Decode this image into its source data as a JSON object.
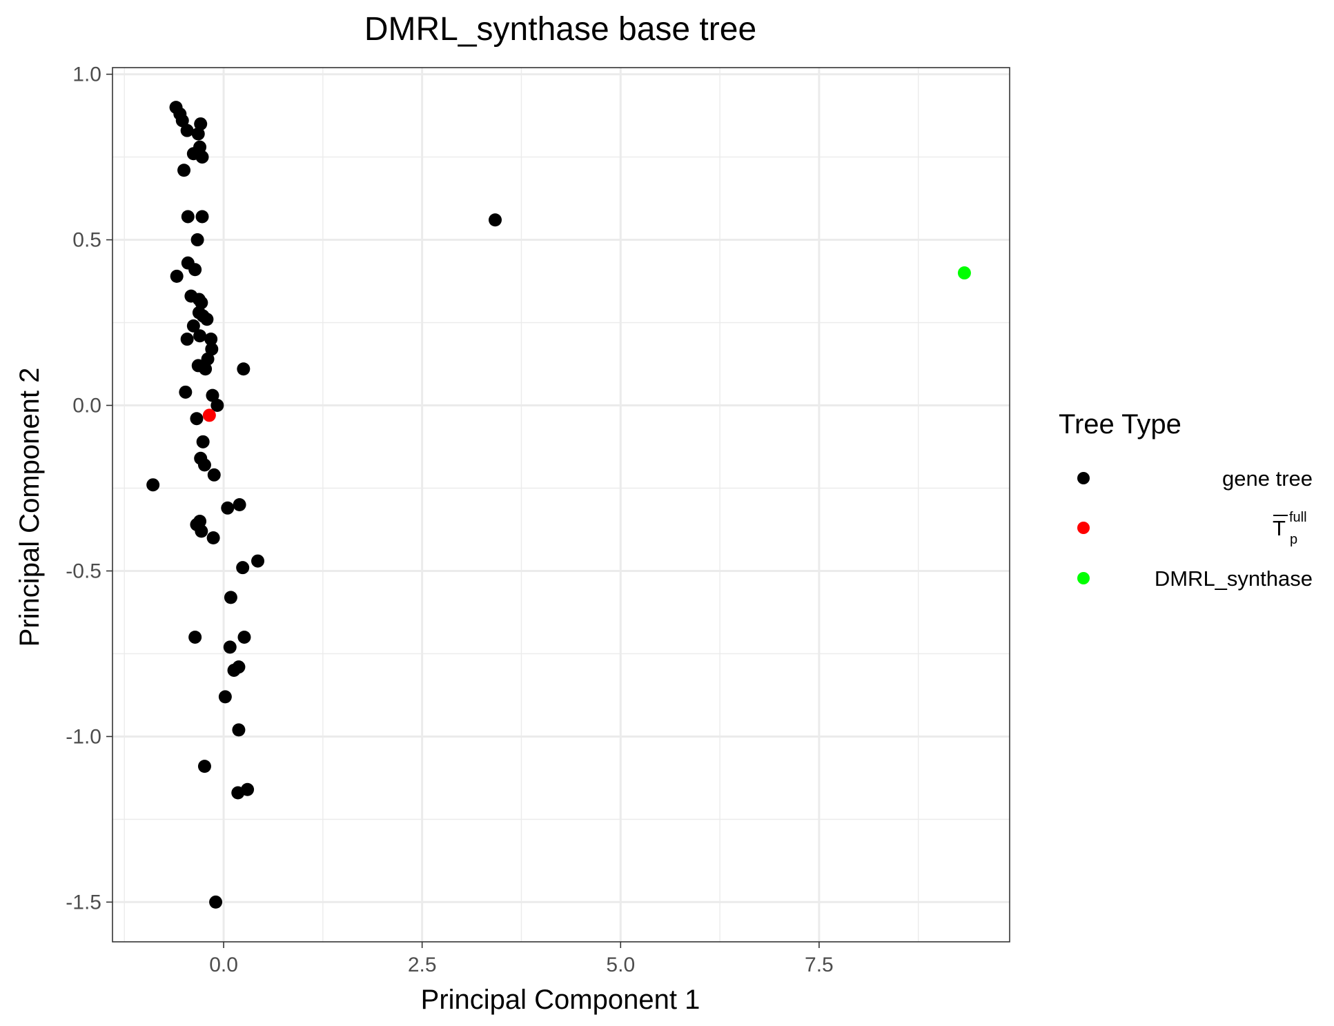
{
  "chart_data": {
    "type": "scatter",
    "title": "DMRL_synthase base tree",
    "xlabel": "Principal Component 1",
    "ylabel": "Principal Component 2",
    "xlim": [
      -1.4,
      9.9
    ],
    "ylim": [
      -1.62,
      1.02
    ],
    "x_major_ticks": [
      0.0,
      2.5,
      5.0,
      7.5
    ],
    "x_tick_labels": [
      "0.0",
      "2.5",
      "5.0",
      "7.5"
    ],
    "x_minor_ticks": [
      -1.25,
      1.25,
      3.75,
      6.25,
      8.75
    ],
    "y_major_ticks": [
      1.0,
      0.5,
      0.0,
      -0.5,
      -1.0,
      -1.5
    ],
    "y_tick_labels": [
      "1.0",
      "0.5",
      "0.0",
      "-0.5",
      "-1.0",
      "-1.5"
    ],
    "y_minor_ticks": [
      0.75,
      0.25,
      -0.25,
      -0.75,
      -1.25
    ],
    "grid": true,
    "legend": {
      "title": "Tree Type",
      "placement": "right",
      "entries": [
        {
          "label": "gene tree",
          "color": "#000000"
        },
        {
          "label": "T",
          "sub": "p",
          "sup": "full",
          "overline": true,
          "color": "#ff0000"
        },
        {
          "label": "DMRL_synthase",
          "color": "#00ff00"
        }
      ]
    },
    "series": [
      {
        "name": "gene tree",
        "color": "#000000",
        "points": [
          [
            -0.6,
            0.9
          ],
          [
            -0.55,
            0.88
          ],
          [
            -0.52,
            0.86
          ],
          [
            -0.46,
            0.83
          ],
          [
            -0.29,
            0.85
          ],
          [
            -0.32,
            0.82
          ],
          [
            -0.3,
            0.78
          ],
          [
            -0.38,
            0.76
          ],
          [
            -0.27,
            0.75
          ],
          [
            -0.5,
            0.71
          ],
          [
            -0.45,
            0.57
          ],
          [
            -0.27,
            0.57
          ],
          [
            -0.33,
            0.5
          ],
          [
            -0.45,
            0.43
          ],
          [
            -0.36,
            0.41
          ],
          [
            -0.59,
            0.39
          ],
          [
            -0.41,
            0.33
          ],
          [
            -0.31,
            0.32
          ],
          [
            -0.28,
            0.31
          ],
          [
            -0.31,
            0.28
          ],
          [
            -0.26,
            0.27
          ],
          [
            -0.21,
            0.26
          ],
          [
            -0.38,
            0.24
          ],
          [
            -0.3,
            0.21
          ],
          [
            -0.16,
            0.2
          ],
          [
            -0.46,
            0.2
          ],
          [
            -0.15,
            0.17
          ],
          [
            -0.2,
            0.14
          ],
          [
            -0.32,
            0.12
          ],
          [
            -0.23,
            0.11
          ],
          [
            0.25,
            0.11
          ],
          [
            -0.48,
            0.04
          ],
          [
            -0.14,
            0.03
          ],
          [
            -0.08,
            0.0
          ],
          [
            -0.34,
            -0.04
          ],
          [
            -0.26,
            -0.11
          ],
          [
            -0.29,
            -0.16
          ],
          [
            -0.24,
            -0.18
          ],
          [
            -0.12,
            -0.21
          ],
          [
            -0.89,
            -0.24
          ],
          [
            0.2,
            -0.3
          ],
          [
            0.05,
            -0.31
          ],
          [
            -0.3,
            -0.35
          ],
          [
            -0.34,
            -0.36
          ],
          [
            -0.28,
            -0.38
          ],
          [
            -0.13,
            -0.4
          ],
          [
            0.43,
            -0.47
          ],
          [
            0.24,
            -0.49
          ],
          [
            0.09,
            -0.58
          ],
          [
            0.26,
            -0.7
          ],
          [
            -0.36,
            -0.7
          ],
          [
            0.08,
            -0.73
          ],
          [
            0.19,
            -0.79
          ],
          [
            0.13,
            -0.8
          ],
          [
            0.02,
            -0.88
          ],
          [
            0.19,
            -0.98
          ],
          [
            -0.24,
            -1.09
          ],
          [
            0.3,
            -1.16
          ],
          [
            0.18,
            -1.17
          ],
          [
            -0.1,
            -1.5
          ],
          [
            3.42,
            0.56
          ]
        ]
      },
      {
        "name": "T",
        "color": "#ff0000",
        "points": [
          [
            -0.18,
            -0.03
          ]
        ]
      },
      {
        "name": "DMRL_synthase",
        "color": "#00ff00",
        "points": [
          [
            9.33,
            0.4
          ]
        ]
      }
    ]
  }
}
